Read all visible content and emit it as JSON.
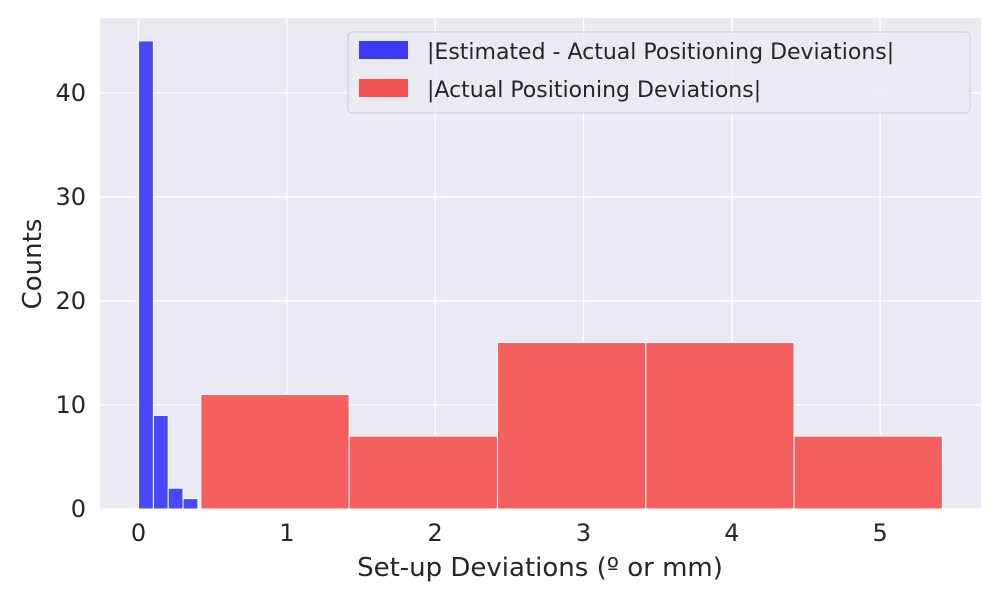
{
  "chart_data": {
    "type": "bar",
    "title": "",
    "xlabel": "Set-up Deviations (º or mm)",
    "ylabel": "Counts",
    "xlim": [
      -0.26,
      5.68
    ],
    "ylim": [
      0,
      47.2
    ],
    "xticks": [
      0,
      1,
      2,
      3,
      4,
      5
    ],
    "yticks": [
      0,
      10,
      20,
      30,
      40
    ],
    "grid": true,
    "legend_position": "top-right",
    "series": [
      {
        "name": "|Estimated - Actual Positioning Deviations|",
        "color": "#3a3afa",
        "bins": [
          {
            "x0": 0.0,
            "x1": 0.1,
            "count": 45
          },
          {
            "x0": 0.1,
            "x1": 0.2,
            "count": 9
          },
          {
            "x0": 0.2,
            "x1": 0.3,
            "count": 2
          },
          {
            "x0": 0.3,
            "x1": 0.4,
            "count": 1
          }
        ]
      },
      {
        "name": "|Actual Positioning Deviations|",
        "color": "#f55252",
        "bins": [
          {
            "x0": 0.42,
            "x1": 1.42,
            "count": 11
          },
          {
            "x0": 1.42,
            "x1": 2.42,
            "count": 7
          },
          {
            "x0": 2.42,
            "x1": 3.42,
            "count": 16
          },
          {
            "x0": 3.42,
            "x1": 4.42,
            "count": 16
          },
          {
            "x0": 4.42,
            "x1": 5.42,
            "count": 7
          }
        ]
      }
    ]
  }
}
